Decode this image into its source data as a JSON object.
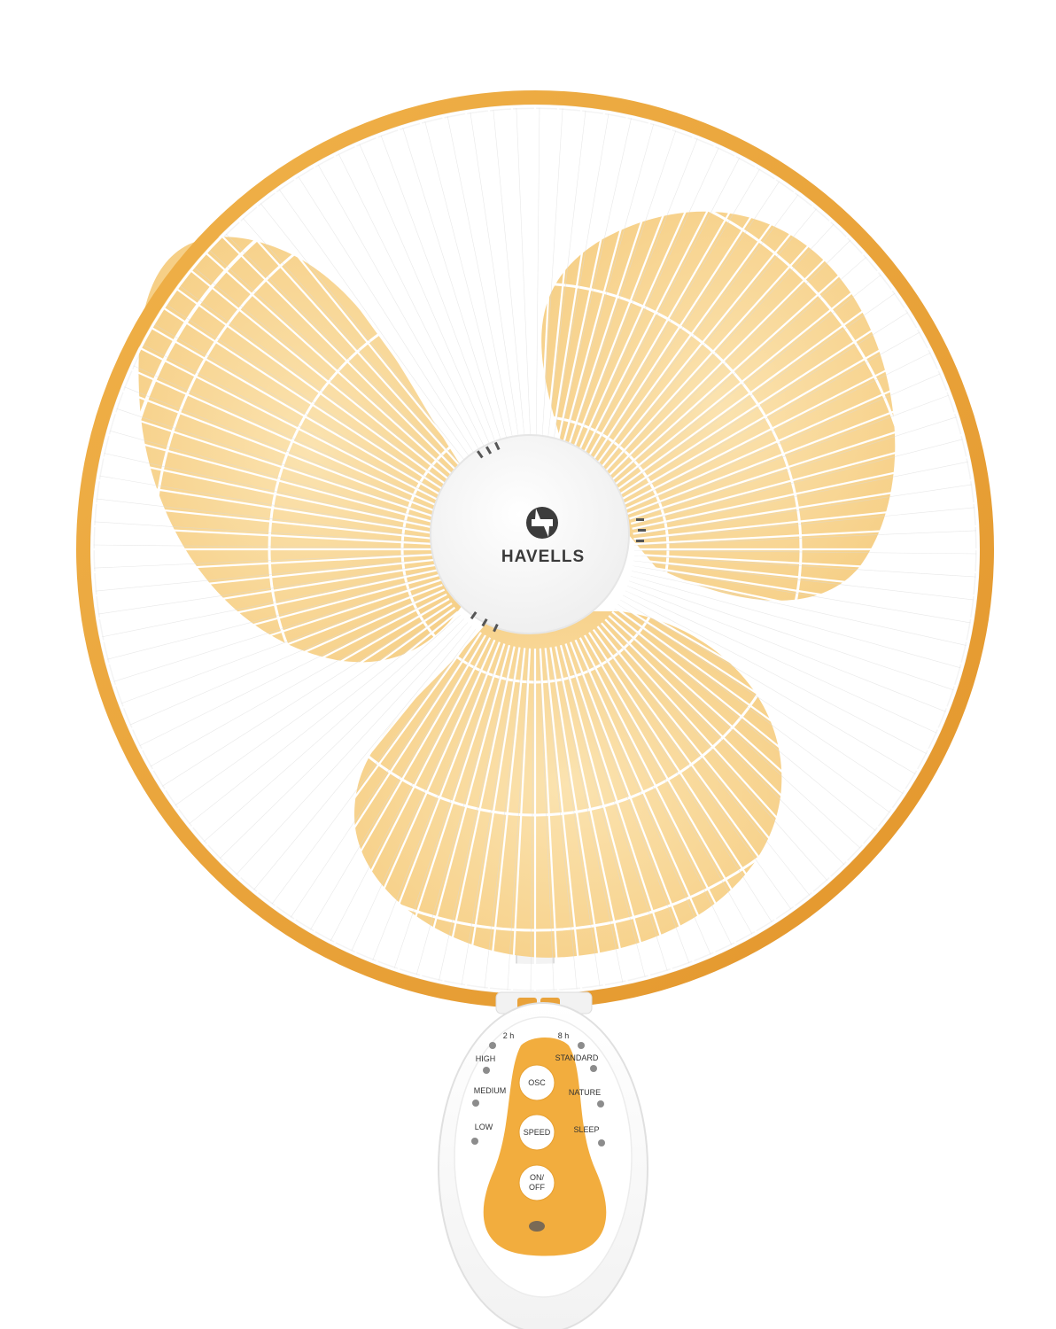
{
  "brand": {
    "name": "HAVELLS"
  },
  "colors": {
    "ring": "#e9a23a",
    "blade": "#f9d99a",
    "grill": "#ffffff",
    "hub": "#ffffff",
    "panel_accent": "#f2ad3e",
    "indicator": "#8c8c8c"
  },
  "control_panel": {
    "timer_left": "2 h",
    "timer_right": "8 h",
    "speed_labels": [
      "HIGH",
      "MEDIUM",
      "LOW"
    ],
    "mode_labels": [
      "STANDARD",
      "NATURE",
      "SLEEP"
    ],
    "buttons": [
      "OSC",
      "SPEED",
      "ON/",
      "OFF"
    ]
  }
}
